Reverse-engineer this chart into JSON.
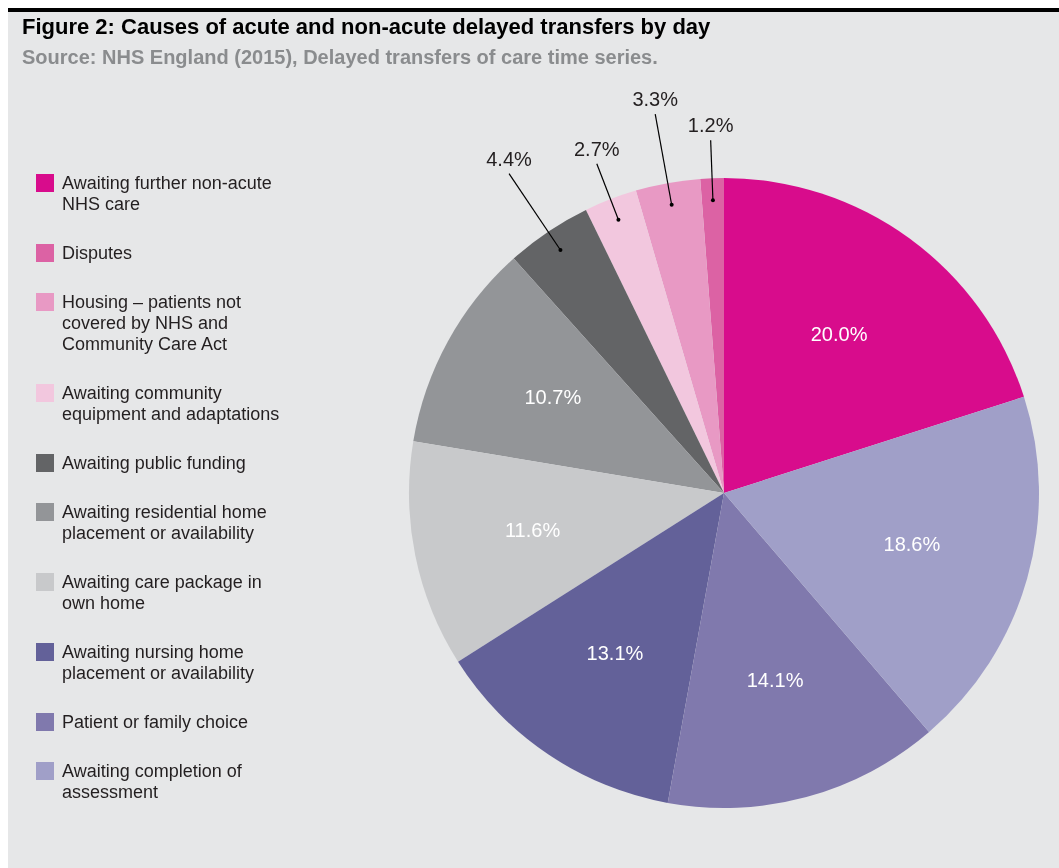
{
  "chart_data": {
    "type": "pie",
    "title": "Figure 2: Causes of acute and non-acute delayed transfers by day",
    "subtitle": "Source: NHS England (2015), Delayed transfers of care time series.",
    "categories": [
      "Awaiting further non-acute NHS care",
      "Disputes",
      "Housing – patients not covered by NHS and Community Care Act",
      "Awaiting community equipment and adaptations",
      "Awaiting public funding",
      "Awaiting residential home placement or availability",
      "Awaiting care package in own home",
      "Awaiting nursing home placement or availability",
      "Patient or family choice",
      "Awaiting completion of assessment"
    ],
    "values": [
      20.0,
      1.2,
      3.3,
      2.7,
      4.4,
      10.7,
      11.6,
      13.1,
      14.1,
      18.6
    ],
    "value_labels": [
      "20.0%",
      "1.2%",
      "3.3%",
      "2.7%",
      "4.4%",
      "10.7%",
      "11.6%",
      "13.1%",
      "14.1%",
      "18.6%"
    ],
    "colors": [
      "#d80c8c",
      "#dc62a4",
      "#e899c4",
      "#f2c7de",
      "#636466",
      "#939598",
      "#c8c9cb",
      "#636199",
      "#8079ad",
      "#a09fc8"
    ],
    "legend": "left"
  }
}
